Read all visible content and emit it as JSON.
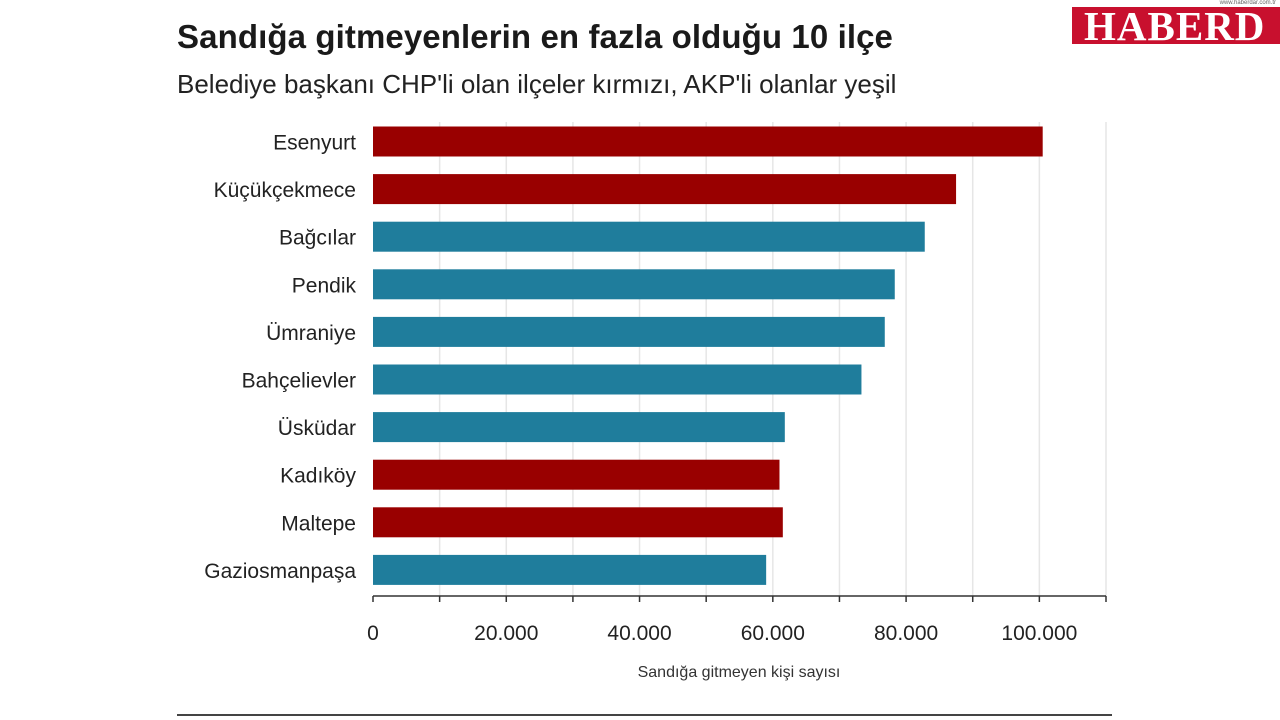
{
  "header": {
    "title": "Sandığa gitmeyenlerin en fazla olduğu 10 ilçe",
    "subtitle": "Belediye başkanı CHP'li olan ilçeler kırmızı, AKP'li olanlar yeşil"
  },
  "logo": {
    "word": "HABERD",
    "url": "www.haberdar.com.tr"
  },
  "colors": {
    "chp": "#990000",
    "akp": "#1f7d9c",
    "grid": "#e6e6e6",
    "axis": "#333333",
    "text": "#222222"
  },
  "chart_data": {
    "type": "bar",
    "orientation": "horizontal",
    "categories": [
      "Esenyurt",
      "Küçükçekmece",
      "Bağcılar",
      "Pendik",
      "Ümraniye",
      "Bahçelievler",
      "Üsküdar",
      "Kadıköy",
      "Maltepe",
      "Gaziosmanpaşa"
    ],
    "values": [
      100500,
      87500,
      82800,
      78300,
      76800,
      73300,
      61800,
      61000,
      61500,
      59000
    ],
    "party": [
      "CHP",
      "CHP",
      "AKP",
      "AKP",
      "AKP",
      "AKP",
      "AKP",
      "CHP",
      "CHP",
      "AKP"
    ],
    "xlim": [
      0,
      110000
    ],
    "xticks": [
      0,
      20000,
      40000,
      60000,
      80000,
      100000
    ],
    "xtick_labels": [
      "0",
      "20.000",
      "40.000",
      "60.000",
      "80.000",
      "100.000"
    ],
    "xlabel": "Sandığa gitmeyen kişi sayısı",
    "ylabel": "",
    "grid": true,
    "legend": "none"
  }
}
